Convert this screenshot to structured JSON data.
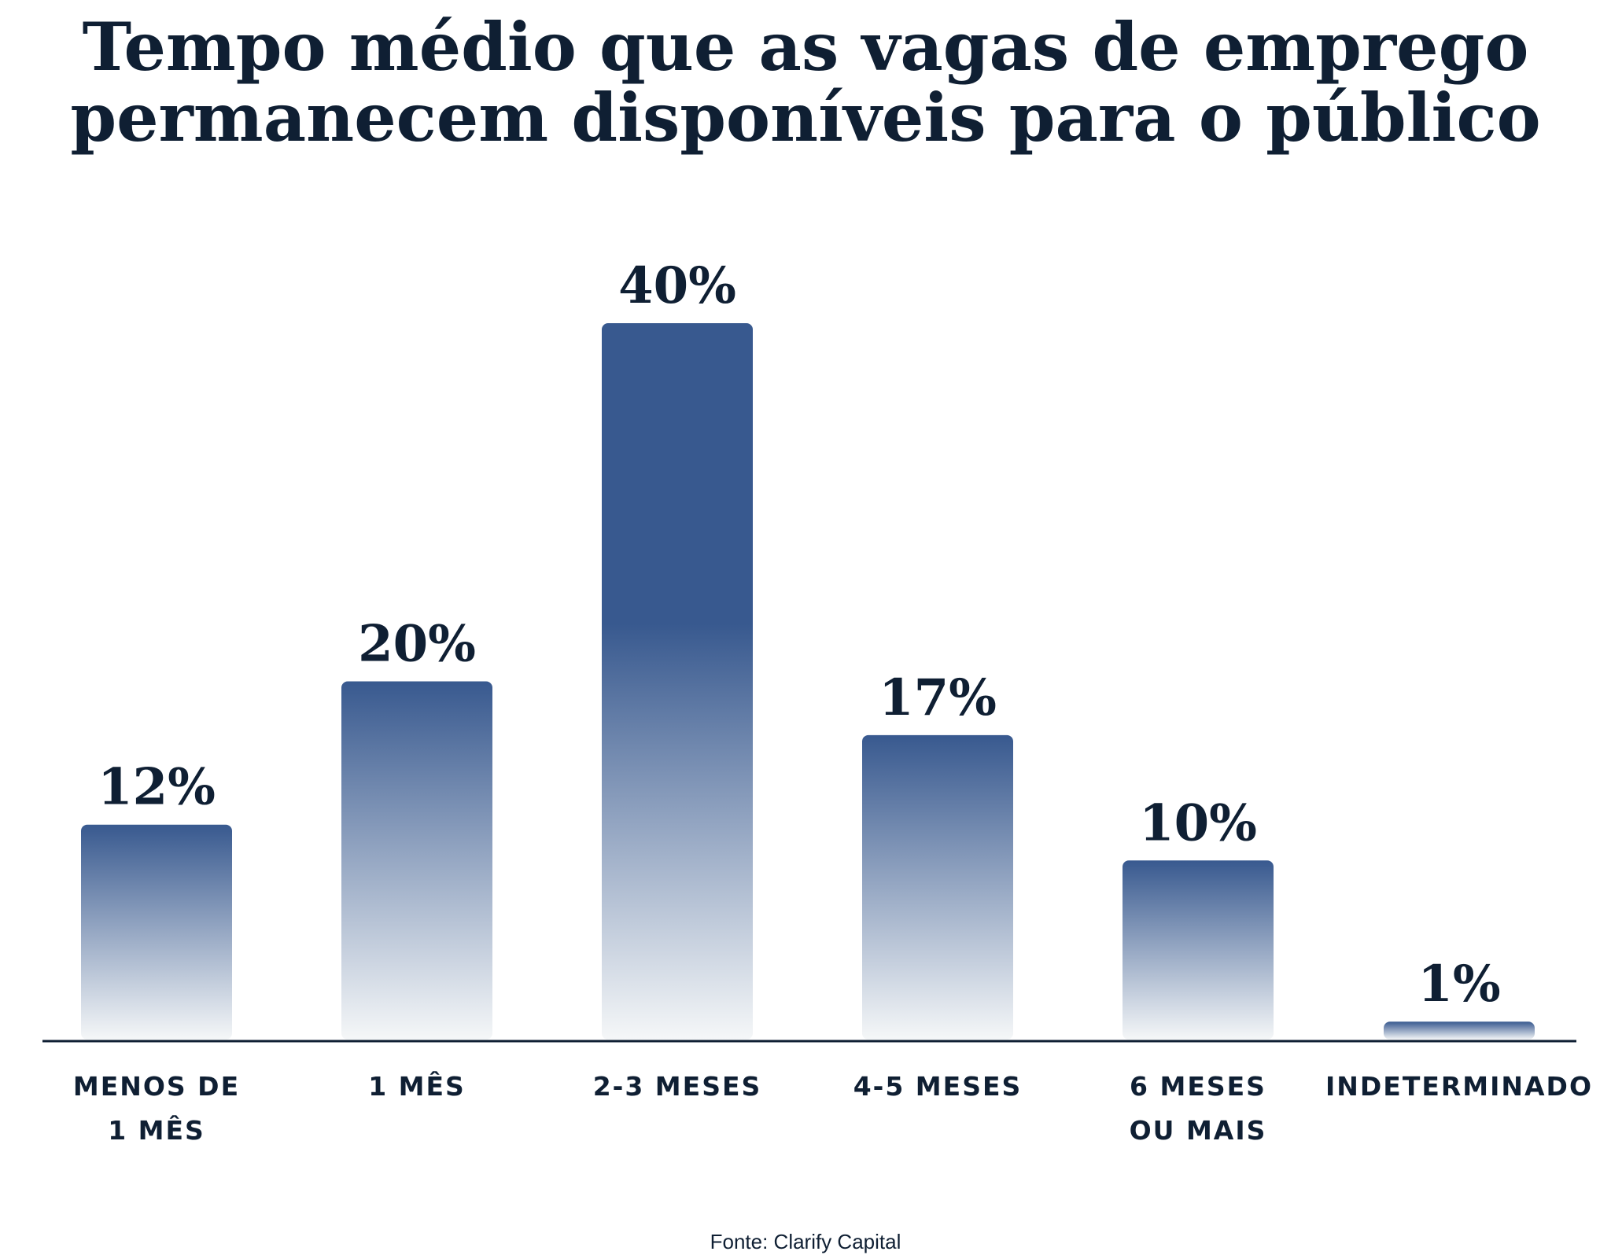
{
  "chart_data": {
    "type": "bar",
    "title_lines": [
      "Tempo médio que as vagas de emprego",
      "permanecem disponíveis para o público"
    ],
    "categories": [
      [
        "MENOS DE",
        "1 MÊS"
      ],
      [
        "1 MÊS"
      ],
      [
        "2-3 MESES"
      ],
      [
        "4-5 MESES"
      ],
      [
        "6 MESES",
        "OU MAIS"
      ],
      [
        "INDETERMINADO"
      ]
    ],
    "values": [
      12,
      20,
      40,
      17,
      10,
      1
    ],
    "value_labels": [
      "12%",
      "20%",
      "40%",
      "17%",
      "10%",
      "1%"
    ],
    "ylim": [
      0,
      40
    ],
    "grid": false,
    "legend": "none",
    "source": "Fonte: Clarify Capital",
    "colors": {
      "bar_top": "#38598f",
      "bar_bottom": "#f5f7f8",
      "text": "#0f1f33",
      "axis": "#0f1f33"
    }
  }
}
